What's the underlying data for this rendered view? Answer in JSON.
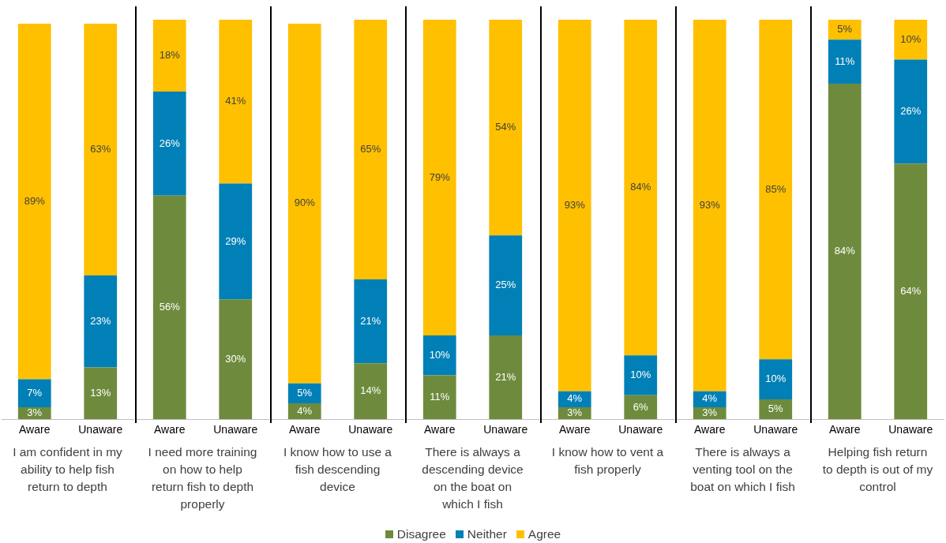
{
  "chart_data": [
    {
      "type": "bar",
      "stacked": true,
      "legend": "bottom",
      "categories": [
        "Aware",
        "Unaware"
      ],
      "xlabel": "I am confident in my ability to help fish return to depth",
      "series": [
        {
          "name": "Disagree",
          "color": "#6e8b3d",
          "values": [
            3,
            13
          ],
          "value_labels": [
            "3%",
            "13%"
          ]
        },
        {
          "name": "Neither",
          "color": "#0080b6",
          "values": [
            7,
            23
          ],
          "value_labels": [
            "7%",
            "23%"
          ]
        },
        {
          "name": "Agree",
          "color": "#ffc000",
          "values": [
            89,
            63
          ],
          "value_labels": [
            "89%",
            "63%"
          ]
        }
      ]
    },
    {
      "type": "bar",
      "stacked": true,
      "categories": [
        "Aware",
        "Unaware"
      ],
      "xlabel": "I need more training on how to help return fish to depth properly",
      "series": [
        {
          "color": "#6e8b3d",
          "values": [
            56,
            30
          ],
          "value_labels": [
            "56%",
            "30%"
          ]
        },
        {
          "color": "#0080b6",
          "values": [
            26,
            29
          ],
          "value_labels": [
            "26%",
            "29%"
          ]
        },
        {
          "color": "#ffc000",
          "values": [
            18,
            41
          ],
          "value_labels": [
            "18%",
            "41%"
          ]
        }
      ]
    },
    {
      "type": "bar",
      "stacked": true,
      "categories": [
        "Aware",
        "Unaware"
      ],
      "xlabel": "I know how to use a fish descending device",
      "series": [
        {
          "color": "#6e8b3d",
          "values": [
            4,
            14
          ],
          "value_labels": [
            "4%",
            "14%"
          ]
        },
        {
          "color": "#0080b6",
          "values": [
            5,
            21
          ],
          "value_labels": [
            "5%",
            "21%"
          ]
        },
        {
          "color": "#ffc000",
          "values": [
            90,
            65
          ],
          "value_labels": [
            "90%",
            "65%"
          ]
        }
      ]
    },
    {
      "type": "bar",
      "stacked": true,
      "categories": [
        "Aware",
        "Unaware"
      ],
      "xlabel": "There is always a descending device on the boat on which I fish",
      "series": [
        {
          "color": "#6e8b3d",
          "values": [
            11,
            21
          ],
          "value_labels": [
            "11%",
            "21%"
          ]
        },
        {
          "color": "#0080b6",
          "values": [
            10,
            25
          ],
          "value_labels": [
            "10%",
            "25%"
          ]
        },
        {
          "color": "#ffc000",
          "values": [
            79,
            54
          ],
          "value_labels": [
            "79%",
            "54%"
          ]
        }
      ]
    },
    {
      "type": "bar",
      "stacked": true,
      "categories": [
        "Aware",
        "Unaware"
      ],
      "xlabel": "I know how to vent a fish properly",
      "series": [
        {
          "color": "#6e8b3d",
          "values": [
            3,
            6
          ],
          "value_labels": [
            "3%",
            "6%"
          ]
        },
        {
          "color": "#0080b6",
          "values": [
            4,
            10
          ],
          "value_labels": [
            "4%",
            "10%"
          ]
        },
        {
          "color": "#ffc000",
          "values": [
            93,
            84
          ],
          "value_labels": [
            "93%",
            "84%"
          ]
        }
      ]
    },
    {
      "type": "bar",
      "stacked": true,
      "categories": [
        "Aware",
        "Unaware"
      ],
      "xlabel": "There is always a venting tool on the boat on which I fish",
      "series": [
        {
          "color": "#6e8b3d",
          "values": [
            3,
            5
          ],
          "value_labels": [
            "3%",
            "5%"
          ]
        },
        {
          "color": "#0080b6",
          "values": [
            4,
            10
          ],
          "value_labels": [
            "4%",
            "10%"
          ]
        },
        {
          "color": "#ffc000",
          "values": [
            93,
            85
          ],
          "value_labels": [
            "93%",
            "85%"
          ]
        }
      ]
    },
    {
      "type": "bar",
      "stacked": true,
      "categories": [
        "Aware",
        "Unaware"
      ],
      "xlabel": "Helping fish return to depth is out of my control",
      "series": [
        {
          "color": "#6e8b3d",
          "values": [
            84,
            64
          ],
          "value_labels": [
            "84%",
            "64%"
          ]
        },
        {
          "color": "#0080b6",
          "values": [
            11,
            26
          ],
          "value_labels": [
            "11%",
            "26%"
          ]
        },
        {
          "color": "#ffc000",
          "values": [
            5,
            10
          ],
          "value_labels": [
            "5%",
            "10%"
          ]
        }
      ]
    }
  ]
}
